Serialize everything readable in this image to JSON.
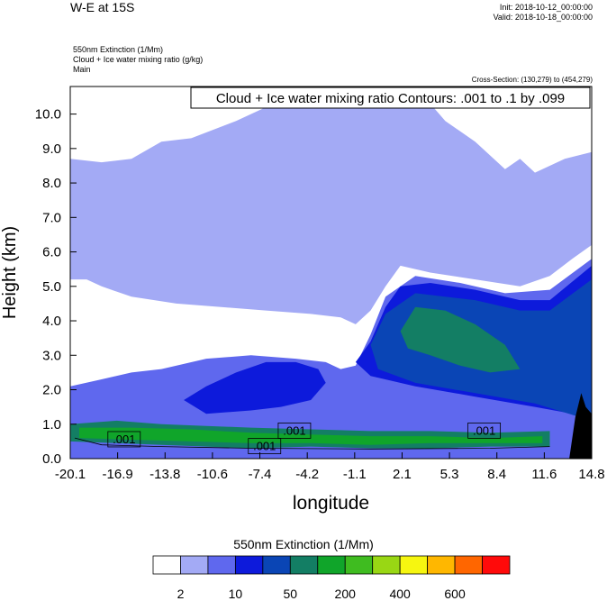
{
  "header": {
    "title": "W-E at 15S",
    "init": "Init: 2018-10-12_00:00:00",
    "valid": "Valid: 2018-10-18_00:00:00",
    "fields": [
      "550nm Extinction   (1/Mm)",
      "Cloud + Ice water mixing ratio   (g/kg)",
      "Main"
    ],
    "cross_section": "Cross-Section: (130,279) to (454,279)"
  },
  "chart_data": {
    "type": "heatmap",
    "xlabel": "longitude",
    "ylabel": "Height (km)",
    "xticks": [
      "-20.1",
      "-16.9",
      "-13.8",
      "-10.6",
      "-7.4",
      "-4.2",
      "-1.1",
      "2.1",
      "5.3",
      "8.4",
      "11.6",
      "14.8"
    ],
    "yticks": [
      "0.0",
      "1.0",
      "2.0",
      "3.0",
      "4.0",
      "5.0",
      "6.0",
      "7.0",
      "8.0",
      "9.0",
      "10.0"
    ],
    "xlim": [
      -20.1,
      14.8
    ],
    "ylim": [
      0.0,
      10.8
    ],
    "contour_label": "Cloud + Ice water mixing ratio Contours: .001 to .1 by .099",
    "contour_line_labels": [
      {
        "text": ".001",
        "x": -17.4,
        "y": 0.55
      },
      {
        "text": ".001",
        "x": -8.0,
        "y": 0.35
      },
      {
        "text": ".001",
        "x": -6.0,
        "y": 0.8
      },
      {
        "text": ".001",
        "x": 6.7,
        "y": 0.8
      }
    ],
    "colorbar": {
      "title": "550nm Extinction  (1/Mm)",
      "colors": [
        "#ffffff",
        "#a3aaf5",
        "#5f68ee",
        "#0d1adb",
        "#0a45b5",
        "#137e64",
        "#10a52a",
        "#3fbc20",
        "#99d714",
        "#f6f610",
        "#ffb700",
        "#ff6600",
        "#ff0a0a"
      ],
      "tick_labels": [
        "2",
        "10",
        "50",
        "200",
        "400",
        "600"
      ]
    },
    "regions": [
      {
        "level": 1,
        "description": "upper cloud deck",
        "points": [
          [
            -20.1,
            5.2
          ],
          [
            -19,
            5.2
          ],
          [
            -18,
            5.0
          ],
          [
            -16,
            4.7
          ],
          [
            -13,
            4.5
          ],
          [
            -10,
            4.4
          ],
          [
            -7,
            4.3
          ],
          [
            -4,
            4.2
          ],
          [
            -2,
            4.1
          ],
          [
            -1,
            3.9
          ],
          [
            0,
            4.3
          ],
          [
            1,
            5.0
          ],
          [
            2,
            5.6
          ],
          [
            4,
            5.4
          ],
          [
            7,
            5.2
          ],
          [
            10,
            5.0
          ],
          [
            12,
            5.3
          ],
          [
            13.5,
            5.8
          ],
          [
            14.8,
            6.2
          ],
          [
            14.8,
            8.9
          ],
          [
            13,
            8.7
          ],
          [
            11,
            8.3
          ],
          [
            10,
            8.7
          ],
          [
            9,
            8.4
          ],
          [
            7,
            9.2
          ],
          [
            5,
            9.8
          ],
          [
            3,
            10.8
          ],
          [
            -3,
            10.8
          ],
          [
            -6,
            10.4
          ],
          [
            -9,
            9.8
          ],
          [
            -12,
            9.3
          ],
          [
            -14,
            9.2
          ],
          [
            -16,
            8.7
          ],
          [
            -18,
            8.6
          ],
          [
            -20.1,
            8.7
          ]
        ]
      },
      {
        "level": 2,
        "description": "mid-level band",
        "points": [
          [
            -20.1,
            2.1
          ],
          [
            -18,
            2.3
          ],
          [
            -16,
            2.5
          ],
          [
            -14,
            2.6
          ],
          [
            -11,
            2.9
          ],
          [
            -8,
            3.0
          ],
          [
            -5,
            2.9
          ],
          [
            -3,
            2.8
          ],
          [
            -2,
            2.6
          ],
          [
            -1,
            2.7
          ],
          [
            0,
            3.6
          ],
          [
            1,
            4.7
          ],
          [
            3,
            5.3
          ],
          [
            6,
            5.1
          ],
          [
            9,
            4.8
          ],
          [
            12,
            4.9
          ],
          [
            14.8,
            5.8
          ],
          [
            14.8,
            0
          ],
          [
            -20.1,
            0
          ]
        ]
      },
      {
        "level": 3,
        "description": "blue core",
        "points": [
          [
            -12.5,
            1.7
          ],
          [
            -11,
            2.1
          ],
          [
            -9,
            2.5
          ],
          [
            -7,
            2.8
          ],
          [
            -5,
            2.8
          ],
          [
            -3.5,
            2.6
          ],
          [
            -3,
            2.2
          ],
          [
            -4,
            1.7
          ],
          [
            -6,
            1.5
          ],
          [
            -8,
            1.4
          ],
          [
            -11,
            1.3
          ]
        ]
      },
      {
        "level": 3,
        "description": "upper blue tongue",
        "points": [
          [
            -1,
            2.8
          ],
          [
            0,
            3.4
          ],
          [
            1,
            4.4
          ],
          [
            2,
            5.0
          ],
          [
            4,
            5.1
          ],
          [
            7,
            4.9
          ],
          [
            10,
            4.6
          ],
          [
            12,
            4.6
          ],
          [
            14.8,
            5.6
          ],
          [
            14.8,
            1.2
          ],
          [
            11,
            1.5
          ],
          [
            7,
            1.8
          ],
          [
            3,
            2.1
          ],
          [
            0,
            2.4
          ]
        ]
      },
      {
        "level": 4,
        "description": "dark band",
        "points": [
          [
            0,
            3.3
          ],
          [
            1,
            4.2
          ],
          [
            3,
            4.8
          ],
          [
            7,
            4.6
          ],
          [
            10,
            4.3
          ],
          [
            12,
            4.3
          ],
          [
            14.8,
            5.2
          ],
          [
            14.8,
            1.1
          ],
          [
            11,
            1.6
          ],
          [
            7,
            1.9
          ],
          [
            3,
            2.2
          ],
          [
            0.5,
            2.6
          ]
        ]
      },
      {
        "level": 5,
        "description": "green tongue",
        "points": [
          [
            2,
            3.7
          ],
          [
            3,
            4.4
          ],
          [
            5,
            4.3
          ],
          [
            7,
            3.9
          ],
          [
            9,
            3.3
          ],
          [
            10,
            2.6
          ],
          [
            8,
            2.5
          ],
          [
            6,
            2.7
          ],
          [
            4,
            3.0
          ],
          [
            2.5,
            3.2
          ]
        ]
      },
      {
        "level": 5,
        "description": "boundary layer",
        "points": [
          [
            -20.1,
            1.0
          ],
          [
            -17,
            1.1
          ],
          [
            -14,
            1.0
          ],
          [
            -11,
            0.95
          ],
          [
            -8,
            0.9
          ],
          [
            -4,
            0.85
          ],
          [
            0,
            0.8
          ],
          [
            4,
            0.8
          ],
          [
            8,
            0.75
          ],
          [
            12,
            0.8
          ],
          [
            12,
            0.35
          ],
          [
            8,
            0.35
          ],
          [
            4,
            0.3
          ],
          [
            0,
            0.3
          ],
          [
            -4,
            0.35
          ],
          [
            -8,
            0.3
          ],
          [
            -11,
            0.35
          ],
          [
            -14,
            0.4
          ],
          [
            -17,
            0.45
          ],
          [
            -20.1,
            0.5
          ]
        ]
      },
      {
        "level": 6,
        "description": "green core",
        "points": [
          [
            -19.5,
            0.9
          ],
          [
            -16,
            0.9
          ],
          [
            -12,
            0.85
          ],
          [
            -8,
            0.75
          ],
          [
            -4,
            0.7
          ],
          [
            0,
            0.65
          ],
          [
            4,
            0.65
          ],
          [
            8,
            0.6
          ],
          [
            11.5,
            0.65
          ],
          [
            11.5,
            0.45
          ],
          [
            8,
            0.45
          ],
          [
            4,
            0.45
          ],
          [
            0,
            0.4
          ],
          [
            -4,
            0.45
          ],
          [
            -8,
            0.45
          ],
          [
            -12,
            0.5
          ],
          [
            -16,
            0.55
          ],
          [
            -19.5,
            0.6
          ]
        ]
      }
    ],
    "terrain": [
      [
        13.3,
        0
      ],
      [
        13.7,
        1.2
      ],
      [
        14.1,
        1.9
      ],
      [
        14.4,
        1.5
      ],
      [
        14.8,
        1.3
      ],
      [
        14.8,
        0
      ]
    ]
  }
}
